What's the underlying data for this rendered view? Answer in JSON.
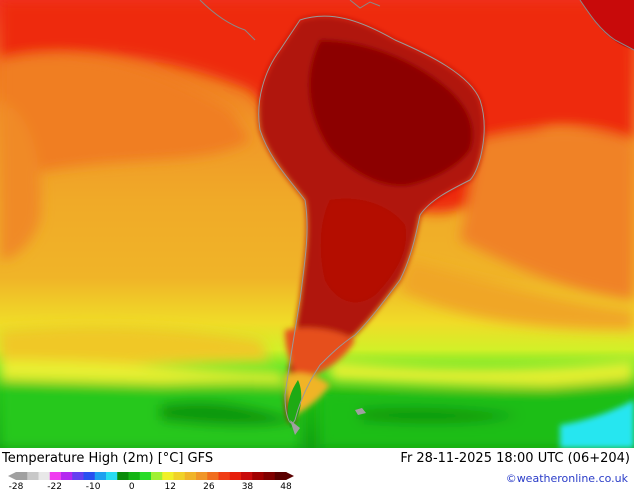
{
  "map": {
    "title": "Temperature High (2m) [°C] GFS",
    "datetime": "Fr 28-11-2025 18:00 UTC (06+204)",
    "credit": "©weatheronline.co.uk",
    "legend": {
      "tick_labels": [
        "-28",
        "-22",
        "-10",
        "0",
        "12",
        "26",
        "38",
        "48"
      ],
      "colors": [
        "#a0a0a0",
        "#c8c8c8",
        "#e8e8e8",
        "#f03cf0",
        "#b428f0",
        "#6440f0",
        "#2850f0",
        "#1ea0f0",
        "#28dcf0",
        "#0a8c0a",
        "#14b414",
        "#28dc28",
        "#a0f032",
        "#f0f028",
        "#f0d228",
        "#f0b428",
        "#f09628",
        "#f06e1e",
        "#f03c14",
        "#e61e0a",
        "#c80a0a",
        "#a00000",
        "#800000",
        "#5a0000"
      ]
    }
  }
}
